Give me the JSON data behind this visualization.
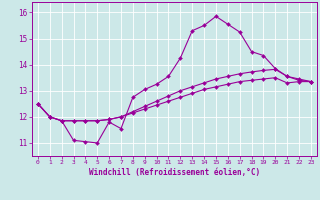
{
  "xlabel": "Windchill (Refroidissement éolien,°C)",
  "xlim": [
    -0.5,
    23.5
  ],
  "ylim": [
    10.5,
    16.4
  ],
  "xticks": [
    0,
    1,
    2,
    3,
    4,
    5,
    6,
    7,
    8,
    9,
    10,
    11,
    12,
    13,
    14,
    15,
    16,
    17,
    18,
    19,
    20,
    21,
    22,
    23
  ],
  "yticks": [
    11,
    12,
    13,
    14,
    15,
    16
  ],
  "bg_color": "#cce8e8",
  "line_color": "#990099",
  "grid_color": "#ffffff",
  "line1_x": [
    0,
    1,
    2,
    3,
    4,
    5,
    6,
    7,
    8,
    9,
    10,
    11,
    12,
    13,
    14,
    15,
    16,
    17,
    18,
    19,
    20,
    21,
    22,
    23
  ],
  "line1_y": [
    12.5,
    12.0,
    11.85,
    11.1,
    11.05,
    11.0,
    11.8,
    11.55,
    12.75,
    13.05,
    13.25,
    13.55,
    14.25,
    15.3,
    15.5,
    15.85,
    15.55,
    15.25,
    14.5,
    14.35,
    13.85,
    13.55,
    13.4,
    13.35
  ],
  "line2_x": [
    0,
    1,
    2,
    3,
    4,
    5,
    6,
    7,
    8,
    9,
    10,
    11,
    12,
    13,
    14,
    15,
    16,
    17,
    18,
    19,
    20,
    21,
    22,
    23
  ],
  "line2_y": [
    12.5,
    12.0,
    11.85,
    11.85,
    11.85,
    11.85,
    11.9,
    12.0,
    12.2,
    12.4,
    12.6,
    12.8,
    13.0,
    13.15,
    13.3,
    13.45,
    13.55,
    13.65,
    13.72,
    13.78,
    13.82,
    13.55,
    13.45,
    13.35
  ],
  "line3_x": [
    0,
    1,
    2,
    3,
    4,
    5,
    6,
    7,
    8,
    9,
    10,
    11,
    12,
    13,
    14,
    15,
    16,
    17,
    18,
    19,
    20,
    21,
    22,
    23
  ],
  "line3_y": [
    12.5,
    12.0,
    11.85,
    11.85,
    11.85,
    11.85,
    11.9,
    12.0,
    12.15,
    12.3,
    12.45,
    12.6,
    12.75,
    12.9,
    13.05,
    13.15,
    13.25,
    13.35,
    13.4,
    13.45,
    13.5,
    13.3,
    13.35,
    13.35
  ]
}
